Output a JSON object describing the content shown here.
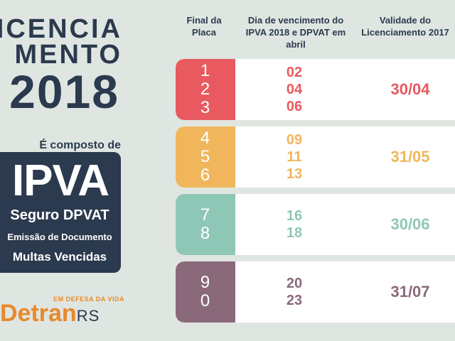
{
  "colors": {
    "background": "#dfe6e1",
    "navy": "#2b3a4e",
    "red": "#e85a5f",
    "orange": "#f1b65c",
    "teal": "#8fc7b7",
    "purple": "#8a6a7a",
    "brand_orange": "#e8892b"
  },
  "left": {
    "title_line1": "LICENCIA",
    "title_line2": "MENTO",
    "title_year": "2018",
    "composed_label": "É composto de",
    "box_big": "IPVA",
    "box_line1": "Seguro DPVAT",
    "box_line2": "Emissão de Documento",
    "box_line3": "Multas Vencidas"
  },
  "logo": {
    "slogan": "EM DEFESA DA VIDA",
    "word": "Detran",
    "suffix": "RS"
  },
  "table": {
    "headers": {
      "col1": "Final da Placa",
      "col2": "Dia de vencimento do IPVA 2018 e DPVAT em abril",
      "col3": "Validade do Licenciamento 2017"
    },
    "rows": [
      {
        "plates": [
          "1",
          "2",
          "3"
        ],
        "days": [
          "02",
          "04",
          "06"
        ],
        "validity": "30/04",
        "color": "#e85a5f"
      },
      {
        "plates": [
          "4",
          "5",
          "6"
        ],
        "days": [
          "09",
          "11",
          "13"
        ],
        "validity": "31/05",
        "color": "#f1b65c"
      },
      {
        "plates": [
          "7",
          "8"
        ],
        "days": [
          "16",
          "18"
        ],
        "validity": "30/06",
        "color": "#8fc7b7"
      },
      {
        "plates": [
          "9",
          "0"
        ],
        "days": [
          "20",
          "23"
        ],
        "validity": "31/07",
        "color": "#8a6a7a"
      }
    ]
  }
}
